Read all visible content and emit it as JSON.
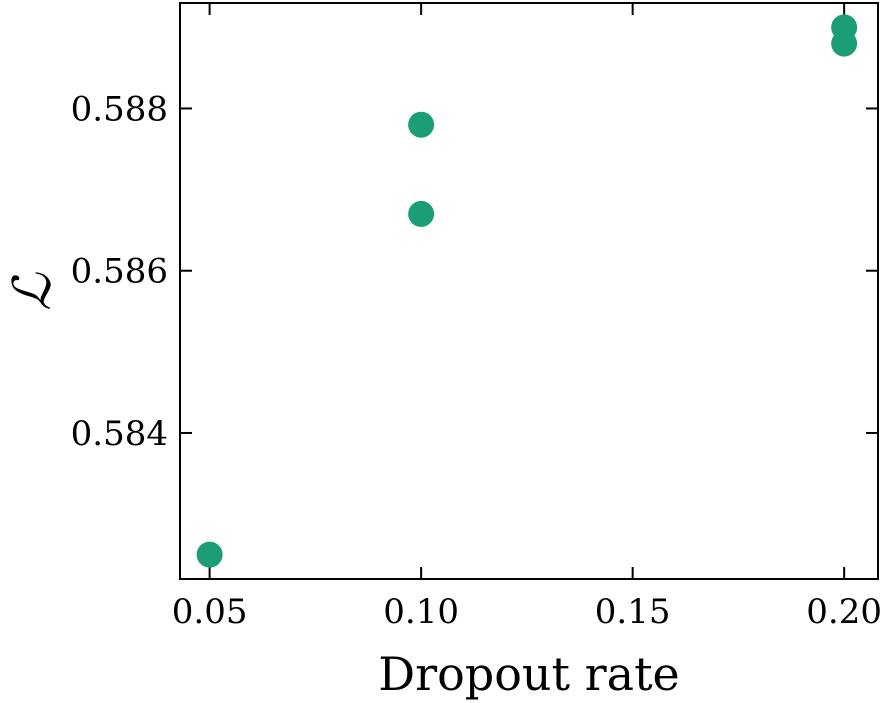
{
  "chart_data": {
    "type": "scatter",
    "xlabel": "Dropout rate",
    "ylabel": "ℒ",
    "xlim": [
      0.043,
      0.208
    ],
    "ylim": [
      0.5822,
      0.5893
    ],
    "x_ticks": [
      0.05,
      0.1,
      0.15,
      0.2
    ],
    "x_tick_labels": [
      "0.05",
      "0.10",
      "0.15",
      "0.20"
    ],
    "y_ticks": [
      0.584,
      0.586,
      0.588
    ],
    "y_tick_labels": [
      "0.584",
      "0.586",
      "0.588"
    ],
    "grid": false,
    "series": [
      {
        "color": "#1b9e77",
        "points": [
          {
            "x": 0.05,
            "y": 0.5825
          },
          {
            "x": 0.1,
            "y": 0.5878
          },
          {
            "x": 0.1,
            "y": 0.5867
          },
          {
            "x": 0.2,
            "y": 0.589
          },
          {
            "x": 0.2,
            "y": 0.5888
          }
        ]
      }
    ]
  }
}
